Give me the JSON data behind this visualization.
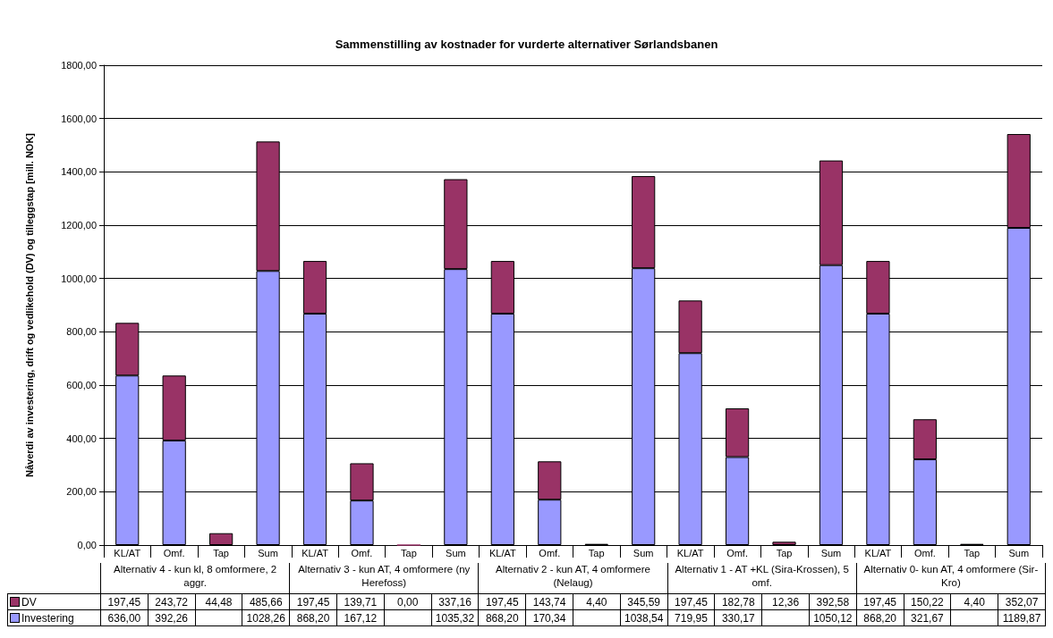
{
  "chart_data": {
    "type": "bar",
    "title": "Sammenstilling av kostnader for vurderte alternativer Sørlandsbanen",
    "ylabel": "Nåverdi av investering, drift og vedlikehold (DV) og tilleggstap [mill. NOK]",
    "categories": [
      "KL/AT",
      "Omf.",
      "Tap",
      "Sum",
      "KL/AT",
      "Omf.",
      "Tap",
      "Sum",
      "KL/AT",
      "Omf.",
      "Tap",
      "Sum",
      "KL/AT",
      "Omf.",
      "Tap",
      "Sum",
      "KL/AT",
      "Omf.",
      "Tap",
      "Sum"
    ],
    "annotations": [
      "Alternativ 4 - kun kl, 8 omformere, 2 aggr.",
      "Alternativ 3 - kun AT, 4 omformere (ny Herefoss)",
      "Alternativ 2 - kun AT, 4 omformere (Nelaug)",
      "Alternativ 1 - AT +KL (Sira-Krossen), 5 omf.",
      "Alternativ 0- kun AT, 4 omformere (Sir-Kro)"
    ],
    "series": [
      {
        "name": "Investering",
        "color": "#9999ff",
        "values": [
          636.0,
          392.26,
          null,
          1028.26,
          868.2,
          167.12,
          null,
          1035.32,
          868.2,
          170.34,
          null,
          1038.54,
          719.95,
          330.17,
          null,
          1050.12,
          868.2,
          321.67,
          null,
          1189.87
        ],
        "value_labels": [
          "636,00",
          "392,26",
          null,
          "1028,26",
          "868,20",
          "167,12",
          null,
          "1035,32",
          "868,20",
          "170,34",
          null,
          "1038,54",
          "719,95",
          "330,17",
          null,
          "1050,12",
          "868,20",
          "321,67",
          null,
          "1189,87"
        ]
      },
      {
        "name": "DV",
        "color": "#993366",
        "values": [
          197.45,
          243.72,
          44.48,
          485.66,
          197.45,
          139.71,
          0.0,
          337.16,
          197.45,
          143.74,
          4.4,
          345.59,
          197.45,
          182.78,
          12.36,
          392.58,
          197.45,
          150.22,
          4.4,
          352.07
        ],
        "value_labels": [
          "197,45",
          "243,72",
          "44,48",
          "485,66",
          "197,45",
          "139,71",
          "0,00",
          "337,16",
          "197,45",
          "143,74",
          "4,40",
          "345,59",
          "197,45",
          "182,78",
          "12,36",
          "392,58",
          "197,45",
          "150,22",
          "4,40",
          "352,07"
        ]
      }
    ],
    "stacked": true,
    "legend": "bottom left",
    "grid": "y",
    "ylim": [
      0,
      1800
    ],
    "yticks": [
      {
        "value": 0,
        "label": "0,00"
      },
      {
        "value": 200,
        "label": "200,00"
      },
      {
        "value": 400,
        "label": "400,00"
      },
      {
        "value": 600,
        "label": "600,00"
      },
      {
        "value": 800,
        "label": "800,00"
      },
      {
        "value": 1000,
        "label": "1000,00"
      },
      {
        "value": 1200,
        "label": "1200,00"
      },
      {
        "value": 1400,
        "label": "1400,00"
      },
      {
        "value": 1600,
        "label": "1600,00"
      },
      {
        "value": 1800,
        "label": "1800,00"
      }
    ]
  }
}
